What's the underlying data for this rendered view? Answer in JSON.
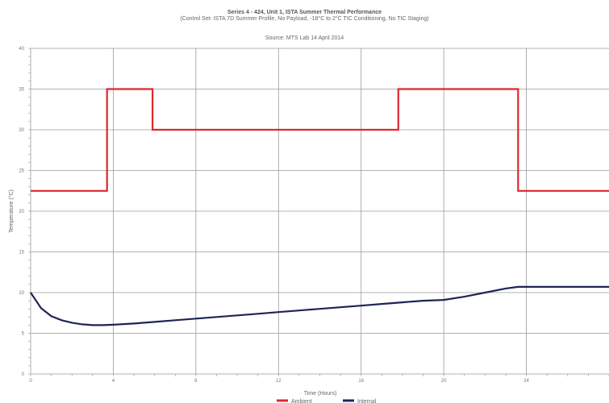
{
  "chart_data": {
    "type": "line",
    "title": "Series 4 - 424, Unit 1, ISTA Summer Thermal Performance",
    "subtitle": "(Control Set: ISTA 7D Summer Profile, No Payload, -18°C to 2°C TIC Conditioning, No TIC Staging)",
    "source": "Source: MTS Lab 14 April 2014",
    "xlabel": "Time (Hours)",
    "ylabel": "Temperature (°C)",
    "xlim": [
      0,
      28
    ],
    "ylim": [
      0,
      40
    ],
    "x_ticks": [
      0,
      4,
      8,
      12,
      16,
      20,
      24
    ],
    "y_ticks": [
      0,
      5,
      10,
      15,
      20,
      25,
      30,
      35,
      40
    ],
    "grid": true,
    "legend_position": "bottom",
    "series": [
      {
        "name": "Ambient",
        "color": "#e0262c",
        "step": true,
        "points": [
          [
            0,
            22.5
          ],
          [
            3.7,
            22.5
          ],
          [
            3.7,
            35
          ],
          [
            5.9,
            35
          ],
          [
            5.9,
            30
          ],
          [
            17.8,
            30
          ],
          [
            17.8,
            35
          ],
          [
            23.6,
            35
          ],
          [
            23.6,
            22.5
          ],
          [
            28,
            22.5
          ]
        ]
      },
      {
        "name": "Internal",
        "color": "#1f2456",
        "points": [
          [
            0,
            10
          ],
          [
            0.5,
            8.1
          ],
          [
            1,
            7.1
          ],
          [
            1.5,
            6.6
          ],
          [
            2,
            6.3
          ],
          [
            2.5,
            6.1
          ],
          [
            3,
            6.0
          ],
          [
            3.5,
            6.0
          ],
          [
            4,
            6.05
          ],
          [
            5,
            6.2
          ],
          [
            6,
            6.4
          ],
          [
            7,
            6.6
          ],
          [
            8,
            6.8
          ],
          [
            9,
            7.0
          ],
          [
            10,
            7.2
          ],
          [
            11,
            7.4
          ],
          [
            12,
            7.6
          ],
          [
            13,
            7.8
          ],
          [
            14,
            8.0
          ],
          [
            15,
            8.2
          ],
          [
            16,
            8.4
          ],
          [
            17,
            8.6
          ],
          [
            18,
            8.8
          ],
          [
            19,
            9.0
          ],
          [
            20,
            9.1
          ],
          [
            21,
            9.5
          ],
          [
            22,
            10.0
          ],
          [
            23,
            10.5
          ],
          [
            23.6,
            10.7
          ],
          [
            24,
            10.7
          ],
          [
            25,
            10.7
          ],
          [
            26,
            10.7
          ],
          [
            27,
            10.7
          ],
          [
            28,
            10.7
          ]
        ]
      }
    ]
  }
}
